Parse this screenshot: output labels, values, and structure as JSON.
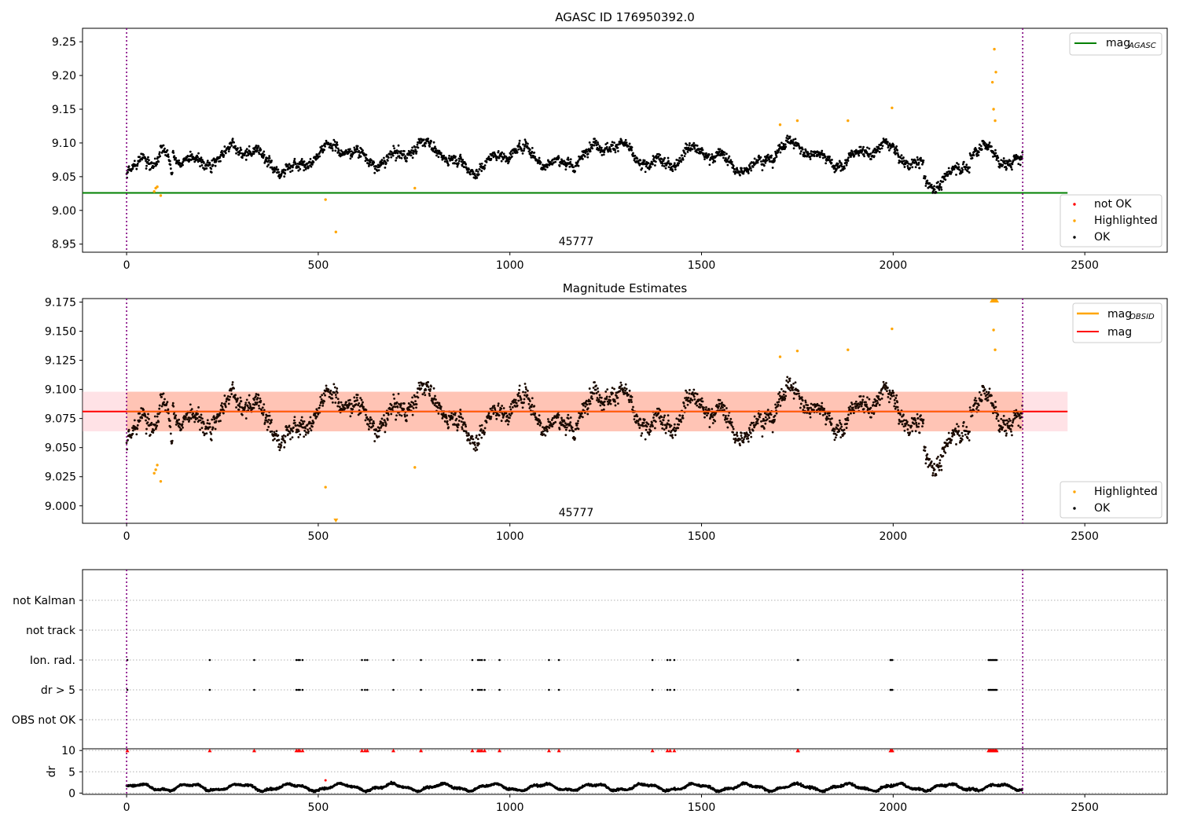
{
  "chart_data": [
    {
      "type": "scatter",
      "title": "AGASC ID 176950392.0",
      "xlabel": "",
      "ylabel": "",
      "xlim": [
        -115,
        2715
      ],
      "ylim": [
        8.938,
        9.27
      ],
      "xticks": [
        0,
        500,
        1000,
        1500,
        2000,
        2500
      ],
      "yticks": [
        8.95,
        9.0,
        9.05,
        9.1,
        9.15,
        9.2,
        9.25
      ],
      "ytick_labels": [
        "8.95",
        "9.00",
        "9.05",
        "9.10",
        "9.15",
        "9.20",
        "9.25"
      ],
      "vlines": [
        0,
        2338
      ],
      "annotation": "45777",
      "hlines": [
        {
          "name": "mag_AGASC",
          "y": 9.026,
          "x": [
            -115,
            2455
          ],
          "color": "#008000"
        }
      ],
      "series": [
        {
          "name": "not OK",
          "color": "#ff0000",
          "points": []
        },
        {
          "name": "Highlighted",
          "color": "#ffa500",
          "points": [
            [
              72,
              9.028
            ],
            [
              76,
              9.033
            ],
            [
              80,
              9.035
            ],
            [
              89,
              9.022
            ],
            [
              519,
              9.016
            ],
            [
              546,
              8.968
            ],
            [
              752,
              9.033
            ],
            [
              1705,
              9.127
            ],
            [
              1750,
              9.133
            ],
            [
              1882,
              9.133
            ],
            [
              1997,
              9.152
            ],
            [
              2259,
              9.19
            ],
            [
              2262,
              9.15
            ],
            [
              2264,
              9.239
            ],
            [
              2266,
              9.133
            ],
            [
              2268,
              9.205
            ]
          ]
        },
        {
          "name": "OK",
          "color": "#000000",
          "points": "dense light curve, ~2330 points, 9.03-9.12 around 9.08"
        }
      ],
      "legend": [
        {
          "label": "mag",
          "sub": "AGASC",
          "placement": "top-right"
        },
        {
          "label": "not OK",
          "placement": "lower-right"
        },
        {
          "label": "Highlighted",
          "placement": "lower-right"
        },
        {
          "label": "OK",
          "placement": "lower-right"
        }
      ]
    },
    {
      "type": "scatter",
      "title": "Magnitude Estimates",
      "xlim": [
        -115,
        2715
      ],
      "ylim": [
        8.985,
        9.178
      ],
      "xticks": [
        0,
        500,
        1000,
        1500,
        2000,
        2500
      ],
      "yticks": [
        9.0,
        9.025,
        9.05,
        9.075,
        9.1,
        9.125,
        9.15,
        9.175
      ],
      "ytick_labels": [
        "9.000",
        "9.025",
        "9.050",
        "9.075",
        "9.100",
        "9.125",
        "9.150",
        "9.175"
      ],
      "vlines": [
        0,
        2338
      ],
      "annotation": "45777",
      "hlines": [
        {
          "name": "mag",
          "y": 9.081,
          "color": "#ff0000"
        },
        {
          "name": "mag_OBSID",
          "y": 9.081,
          "color": "#ffa500"
        }
      ],
      "bands": [
        {
          "y": [
            9.064,
            9.098
          ],
          "color": "#ffb6c1"
        },
        {
          "y": [
            9.064,
            9.098
          ],
          "color": "#ffa07a"
        }
      ],
      "series": [
        {
          "name": "Highlighted",
          "color": "#ffa500",
          "points": [
            [
              72,
              9.028
            ],
            [
              76,
              9.031
            ],
            [
              80,
              9.035
            ],
            [
              89,
              9.021
            ],
            [
              519,
              9.016
            ],
            [
              752,
              9.033
            ],
            [
              1705,
              9.128
            ],
            [
              1750,
              9.133
            ],
            [
              1882,
              9.134
            ],
            [
              1997,
              9.152
            ],
            [
              2262,
              9.151
            ],
            [
              2266,
              9.134
            ]
          ]
        },
        {
          "name": "OK",
          "color": "#000000",
          "points": "dense light curve, same values as top panel"
        }
      ],
      "legend": [
        {
          "label": "mag",
          "sub": "OBSID",
          "placement": "top-right"
        },
        {
          "label": "mag",
          "placement": "top-right"
        },
        {
          "label": "Highlighted",
          "placement": "lower-right"
        },
        {
          "label": "OK",
          "placement": "lower-right"
        }
      ]
    },
    {
      "type": "scatter",
      "title": "",
      "xlim": [
        -115,
        2715
      ],
      "xticks": [
        0,
        500,
        1000,
        1500,
        2000,
        2500
      ],
      "categories": [
        "not Kalman",
        "not track",
        "Ion. rad.",
        "dr > 5",
        "OBS not OK"
      ],
      "flag_times": [
        2,
        217,
        333,
        443,
        448,
        452,
        459,
        614,
        622,
        628,
        696,
        768,
        902,
        917,
        922,
        927,
        934,
        973,
        1102,
        1128,
        1372,
        1411,
        1418,
        1429,
        1751,
        1752,
        1993,
        1995,
        1998,
        2249,
        2252,
        2255,
        2258,
        2261,
        2264,
        2267,
        2270
      ],
      "flag_rows": [
        "Ion. rad.",
        "dr > 5"
      ],
      "vlines": [
        0,
        2338
      ]
    },
    {
      "type": "line",
      "title": "",
      "ylabel": "dr",
      "xlim": [
        -115,
        2715
      ],
      "ylim": [
        -0.3,
        10.4
      ],
      "yticks": [
        0,
        5,
        10
      ],
      "xticks": [
        0,
        500,
        1000,
        1500,
        2000,
        2500
      ],
      "vlines": [
        0,
        2338
      ],
      "series": [
        {
          "name": "dr",
          "color": "#000000",
          "points": "oscillating 0.1-2.6 across all times"
        },
        {
          "name": "dr > 5",
          "color": "#ff0000",
          "points": "marker at 10 at each flagged time"
        }
      ]
    }
  ]
}
